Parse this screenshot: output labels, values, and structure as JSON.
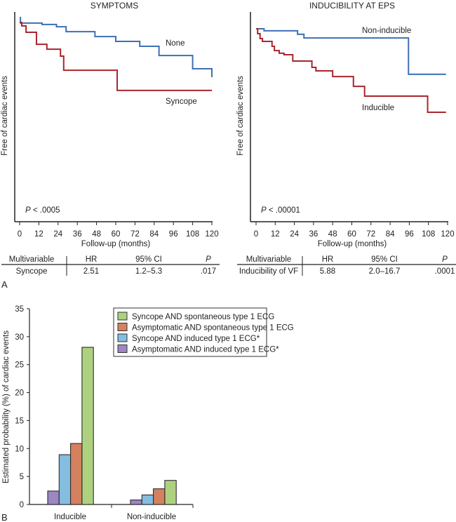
{
  "figure": {
    "panel_a_label": "A",
    "panel_b_label": "B"
  },
  "chart_data": [
    {
      "type": "line",
      "subtype": "kaplan-meier",
      "title": "SYMPTOMS",
      "xlabel": "Follow-up (months)",
      "ylabel": "Free of cardiac events",
      "xlim": [
        0,
        120
      ],
      "ylim": [
        0,
        1
      ],
      "xticks": [
        "0",
        "12",
        "24",
        "36",
        "48",
        "60",
        "72",
        "84",
        "96",
        "108",
        "120"
      ],
      "grid": false,
      "annotation_p": "P",
      "annotation_value": " < .0005",
      "series": [
        {
          "name": "None",
          "color": "#3f6fb5",
          "steps": [
            [
              0,
              1.0
            ],
            [
              0.5,
              0.973
            ],
            [
              14,
              0.966
            ],
            [
              23,
              0.955
            ],
            [
              29,
              0.931
            ],
            [
              47,
              0.907
            ],
            [
              60,
              0.883
            ],
            [
              75,
              0.859
            ],
            [
              87,
              0.814
            ],
            [
              108,
              0.749
            ],
            [
              120,
              0.708
            ]
          ]
        },
        {
          "name": "Syncope",
          "color": "#a8262c",
          "steps": [
            [
              0,
              0.976
            ],
            [
              1.3,
              0.959
            ],
            [
              4,
              0.928
            ],
            [
              10.5,
              0.869
            ],
            [
              17,
              0.845
            ],
            [
              25.5,
              0.811
            ],
            [
              27.5,
              0.742
            ],
            [
              60.9,
              0.643
            ],
            [
              120,
              0.643
            ]
          ]
        }
      ],
      "table": {
        "headers": [
          "Multivariable",
          "HR",
          "95% CI",
          "P"
        ],
        "rows": [
          [
            "Syncope",
            "2.51",
            "1.2–5.3",
            ".017"
          ]
        ]
      }
    },
    {
      "type": "line",
      "subtype": "kaplan-meier",
      "title": "INDUCIBILITY AT EPS",
      "xlabel": "Follow-up (months)",
      "ylabel": "Free of cardiac events",
      "xlim": [
        0,
        120
      ],
      "ylim": [
        0,
        1
      ],
      "xticks": [
        "0",
        "12",
        "24",
        "36",
        "48",
        "60",
        "72",
        "84",
        "96",
        "108",
        "120"
      ],
      "grid": false,
      "annotation_p": "P",
      "annotation_value": " < .00001",
      "series": [
        {
          "name": "Non-inducible",
          "color": "#3f6fb5",
          "steps": [
            [
              0,
              0.945
            ],
            [
              5,
              0.935
            ],
            [
              26,
              0.918
            ],
            [
              30,
              0.9
            ],
            [
              95.5,
              0.722
            ],
            [
              119,
              0.722
            ]
          ]
        },
        {
          "name": "Inducible",
          "color": "#a8262c",
          "steps": [
            [
              0,
              0.945
            ],
            [
              1,
              0.921
            ],
            [
              2.5,
              0.897
            ],
            [
              4,
              0.883
            ],
            [
              10,
              0.859
            ],
            [
              11.5,
              0.838
            ],
            [
              14.5,
              0.825
            ],
            [
              17.5,
              0.818
            ],
            [
              23,
              0.787
            ],
            [
              35,
              0.756
            ],
            [
              37.5,
              0.739
            ],
            [
              48,
              0.711
            ],
            [
              61,
              0.663
            ],
            [
              68,
              0.615
            ],
            [
              107.5,
              0.536
            ],
            [
              119,
              0.536
            ]
          ]
        }
      ],
      "table": {
        "headers": [
          "Multivariable",
          "HR",
          "95% CI",
          "P"
        ],
        "rows": [
          [
            "Inducibility of VF",
            "5.88",
            "2.0–16.7",
            ".0001"
          ]
        ]
      }
    },
    {
      "type": "bar",
      "title": "",
      "xlabel": "",
      "ylabel": "Estimated probability (%) of cardiac events",
      "ylim": [
        0,
        35
      ],
      "yticks": [
        "0",
        "5",
        "10",
        "15",
        "20",
        "25",
        "30",
        "35"
      ],
      "categories": [
        "Inducible",
        "Non-inducible"
      ],
      "legend_position": "top-right",
      "series": [
        {
          "name": "Asymptomatic AND induced type 1 ECG*",
          "color": "#9d86c4",
          "values": [
            2.4,
            0.8
          ]
        },
        {
          "name": "Syncope AND induced type 1 ECG*",
          "color": "#84bde0",
          "values": [
            8.9,
            1.7
          ]
        },
        {
          "name": "Asymptomatic AND spontaneous type 1 ECG",
          "color": "#d5815f",
          "values": [
            10.9,
            2.8
          ]
        },
        {
          "name": "Syncope AND spontaneous type 1 ECG",
          "color": "#aed17f",
          "values": [
            28.1,
            4.3
          ]
        }
      ],
      "legend_order": [
        3,
        2,
        1,
        0
      ]
    }
  ]
}
